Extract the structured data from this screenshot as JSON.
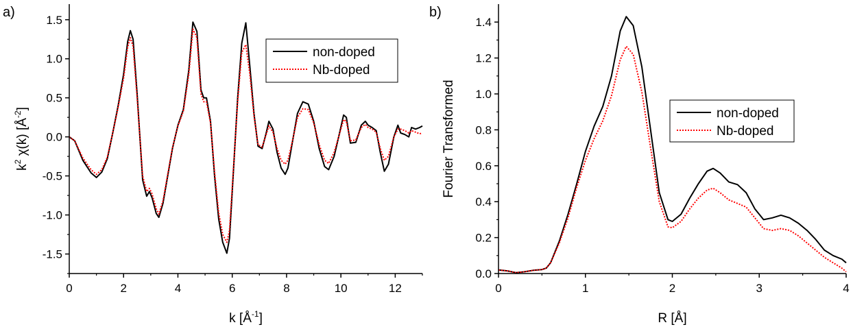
{
  "chart_data": [
    {
      "panel_label": "a)",
      "type": "line",
      "xlabel": "k [Å",
      "xlabel_sup": "-1",
      "xlabel_end": "]",
      "ylabel": "k",
      "ylabel_sup": "2",
      "ylabel_mid": " χ(k) [Å",
      "ylabel_sup2": "-2",
      "ylabel_end": "]",
      "xlim": [
        0,
        13
      ],
      "ylim": [
        -1.75,
        1.7
      ],
      "xticks": [
        0,
        2,
        4,
        6,
        8,
        10,
        12
      ],
      "xtick_labels": [
        "0",
        "2",
        "4",
        "6",
        "8",
        "10",
        "12"
      ],
      "yticks": [
        -1.5,
        -1.0,
        -0.5,
        0.0,
        0.5,
        1.0,
        1.5
      ],
      "ytick_labels": [
        "-1.5",
        "-1.0",
        "-0.5",
        "0.0",
        "0.5",
        "1.0",
        "1.5"
      ],
      "legend_position": "top-right",
      "series": [
        {
          "name": "non-doped",
          "color": "#000000",
          "dash": "solid",
          "x": [
            0,
            0.2,
            0.5,
            0.8,
            1.0,
            1.2,
            1.4,
            1.6,
            1.8,
            2.0,
            2.15,
            2.25,
            2.35,
            2.5,
            2.7,
            2.85,
            2.95,
            3.05,
            3.2,
            3.3,
            3.45,
            3.6,
            3.8,
            4.0,
            4.2,
            4.4,
            4.55,
            4.7,
            4.85,
            4.95,
            5.05,
            5.2,
            5.35,
            5.5,
            5.65,
            5.8,
            5.9,
            6.05,
            6.2,
            6.35,
            6.5,
            6.65,
            6.8,
            6.95,
            7.1,
            7.25,
            7.35,
            7.5,
            7.65,
            7.8,
            7.95,
            8.05,
            8.2,
            8.4,
            8.6,
            8.8,
            9.0,
            9.2,
            9.4,
            9.55,
            9.75,
            9.95,
            10.1,
            10.2,
            10.35,
            10.55,
            10.75,
            10.9,
            11.0,
            11.15,
            11.3,
            11.45,
            11.6,
            11.75,
            11.95,
            12.1,
            12.2,
            12.35,
            12.5,
            12.6,
            12.75,
            12.9,
            13.0
          ],
          "y": [
            0.0,
            -0.05,
            -0.3,
            -0.46,
            -0.52,
            -0.45,
            -0.28,
            0.05,
            0.4,
            0.8,
            1.22,
            1.36,
            1.25,
            0.55,
            -0.55,
            -0.76,
            -0.7,
            -0.78,
            -0.98,
            -1.03,
            -0.85,
            -0.55,
            -0.15,
            0.15,
            0.35,
            0.85,
            1.47,
            1.35,
            0.6,
            0.5,
            0.5,
            0.2,
            -0.5,
            -1.05,
            -1.35,
            -1.49,
            -1.3,
            -0.4,
            0.5,
            1.2,
            1.46,
            0.9,
            0.3,
            -0.12,
            -0.15,
            0.05,
            0.2,
            0.1,
            -0.2,
            -0.4,
            -0.48,
            -0.4,
            -0.1,
            0.3,
            0.45,
            0.42,
            0.2,
            -0.15,
            -0.38,
            -0.42,
            -0.25,
            0.05,
            0.28,
            0.25,
            -0.08,
            -0.07,
            0.15,
            0.2,
            0.15,
            0.12,
            0.08,
            -0.2,
            -0.44,
            -0.35,
            0.0,
            0.15,
            0.05,
            0.03,
            0.0,
            0.12,
            0.1,
            0.12,
            0.14
          ]
        },
        {
          "name": "Nb-doped",
          "color": "#ff0000",
          "dash": "dotted",
          "x": [
            0,
            0.2,
            0.5,
            0.8,
            1.0,
            1.2,
            1.4,
            1.6,
            1.8,
            2.0,
            2.15,
            2.25,
            2.35,
            2.5,
            2.7,
            2.85,
            2.95,
            3.05,
            3.2,
            3.3,
            3.45,
            3.6,
            3.8,
            4.0,
            4.2,
            4.4,
            4.55,
            4.7,
            4.85,
            4.95,
            5.05,
            5.2,
            5.35,
            5.5,
            5.65,
            5.8,
            5.9,
            6.05,
            6.2,
            6.35,
            6.5,
            6.65,
            6.8,
            6.95,
            7.1,
            7.25,
            7.35,
            7.5,
            7.65,
            7.8,
            7.95,
            8.05,
            8.2,
            8.4,
            8.6,
            8.8,
            9.0,
            9.2,
            9.4,
            9.55,
            9.75,
            9.95,
            10.1,
            10.2,
            10.35,
            10.55,
            10.75,
            10.9,
            11.0,
            11.15,
            11.3,
            11.45,
            11.6,
            11.75,
            11.95,
            12.1,
            12.2,
            12.35,
            12.5,
            12.6,
            12.75,
            12.9,
            13.0
          ],
          "y": [
            0.0,
            -0.05,
            -0.27,
            -0.42,
            -0.48,
            -0.42,
            -0.26,
            0.05,
            0.38,
            0.75,
            1.15,
            1.27,
            1.16,
            0.5,
            -0.5,
            -0.7,
            -0.66,
            -0.73,
            -0.92,
            -0.99,
            -0.82,
            -0.53,
            -0.14,
            0.14,
            0.33,
            0.8,
            1.38,
            1.27,
            0.55,
            0.45,
            0.45,
            0.18,
            -0.45,
            -0.97,
            -1.25,
            -1.35,
            -1.2,
            -0.37,
            0.45,
            1.08,
            1.18,
            0.8,
            0.27,
            -0.1,
            -0.13,
            0.03,
            0.14,
            0.06,
            -0.15,
            -0.3,
            -0.35,
            -0.3,
            -0.08,
            0.25,
            0.36,
            0.35,
            0.18,
            -0.1,
            -0.3,
            -0.34,
            -0.2,
            0.04,
            0.22,
            0.2,
            -0.05,
            -0.04,
            0.12,
            0.16,
            0.12,
            0.1,
            0.06,
            -0.15,
            -0.3,
            -0.25,
            0.0,
            0.1,
            0.1,
            0.08,
            0.05,
            0.08,
            0.06,
            0.04,
            0.05
          ]
        }
      ]
    },
    {
      "panel_label": "b)",
      "type": "line",
      "xlabel": "R [Å]",
      "ylabel": "Fourier Transformed",
      "xlim": [
        0,
        4
      ],
      "ylim": [
        0,
        1.5
      ],
      "xticks": [
        0,
        1,
        2,
        3,
        4
      ],
      "xtick_labels": [
        "0",
        "1",
        "2",
        "3",
        "4"
      ],
      "yticks": [
        0.0,
        0.2,
        0.4,
        0.6,
        0.8,
        1.0,
        1.2,
        1.4
      ],
      "ytick_labels": [
        "0.0",
        "0.2",
        "0.4",
        "0.6",
        "0.8",
        "1.0",
        "1.2",
        "1.4"
      ],
      "legend_position": "center-right",
      "series": [
        {
          "name": "non-doped",
          "color": "#000000",
          "dash": "solid",
          "x": [
            0,
            0.1,
            0.2,
            0.3,
            0.4,
            0.5,
            0.55,
            0.6,
            0.7,
            0.8,
            0.9,
            1.0,
            1.1,
            1.2,
            1.3,
            1.4,
            1.47,
            1.55,
            1.65,
            1.75,
            1.85,
            1.95,
            2.0,
            2.1,
            2.2,
            2.3,
            2.4,
            2.47,
            2.55,
            2.65,
            2.75,
            2.85,
            2.95,
            3.05,
            3.15,
            3.25,
            3.35,
            3.45,
            3.55,
            3.65,
            3.75,
            3.85,
            3.95,
            4.0
          ],
          "y": [
            0.02,
            0.015,
            0.005,
            0.01,
            0.018,
            0.022,
            0.03,
            0.06,
            0.18,
            0.33,
            0.5,
            0.68,
            0.82,
            0.93,
            1.1,
            1.35,
            1.43,
            1.38,
            1.15,
            0.8,
            0.45,
            0.3,
            0.29,
            0.33,
            0.42,
            0.5,
            0.57,
            0.585,
            0.56,
            0.51,
            0.495,
            0.45,
            0.36,
            0.3,
            0.31,
            0.325,
            0.31,
            0.28,
            0.24,
            0.19,
            0.13,
            0.1,
            0.08,
            0.06
          ]
        },
        {
          "name": "Nb-doped",
          "color": "#ff0000",
          "dash": "dotted",
          "x": [
            0,
            0.1,
            0.2,
            0.3,
            0.4,
            0.5,
            0.55,
            0.6,
            0.7,
            0.8,
            0.9,
            1.0,
            1.1,
            1.2,
            1.3,
            1.4,
            1.47,
            1.55,
            1.65,
            1.75,
            1.85,
            1.95,
            2.0,
            2.1,
            2.2,
            2.3,
            2.4,
            2.47,
            2.55,
            2.65,
            2.75,
            2.85,
            2.95,
            3.05,
            3.15,
            3.25,
            3.35,
            3.45,
            3.55,
            3.65,
            3.75,
            3.85,
            3.95,
            4.0
          ],
          "y": [
            0.02,
            0.015,
            0.005,
            0.01,
            0.018,
            0.022,
            0.03,
            0.06,
            0.17,
            0.31,
            0.48,
            0.63,
            0.75,
            0.85,
            0.99,
            1.19,
            1.265,
            1.22,
            1.01,
            0.7,
            0.4,
            0.26,
            0.255,
            0.29,
            0.36,
            0.42,
            0.465,
            0.475,
            0.45,
            0.41,
            0.39,
            0.37,
            0.31,
            0.25,
            0.24,
            0.25,
            0.24,
            0.21,
            0.17,
            0.13,
            0.09,
            0.06,
            0.03,
            0.01
          ]
        }
      ]
    }
  ]
}
